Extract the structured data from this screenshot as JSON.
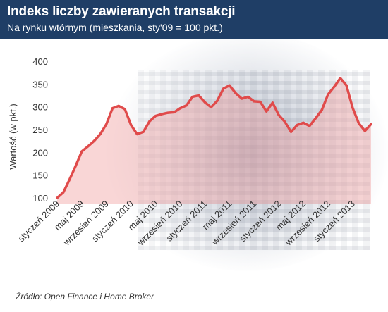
{
  "header": {
    "title": "Indeks liczby zawieranych transakcji",
    "subtitle": "Na rynku wtórnym (mieszkania, sty'09 = 100 pkt.)"
  },
  "source": "Źródło: Open Finance i Home Broker",
  "colors": {
    "header_bg": "#1f3e66",
    "line": "#e04b4b",
    "area": "#f2a3a3"
  },
  "chart_data": {
    "type": "area",
    "ylabel": "Wartość (w pkt.)",
    "ylim": [
      0,
      400
    ],
    "yticks": [
      400,
      350,
      300,
      250,
      200,
      150,
      100
    ],
    "grid": false,
    "x_tick_labels": [
      "styczeń 2009",
      "maj 2009",
      "wrzesień 2009",
      "styczeń 2010",
      "maj 2010",
      "wrzesień 2010",
      "styczeń 2011",
      "maj 2011",
      "wrzesień 2011",
      "styczeń 2012",
      "maj 2012",
      "wrzesień 2012",
      "styczeń 2013"
    ],
    "x_tick_every": 4,
    "series": [
      {
        "values": [
          100,
          112,
          140,
          170,
          202,
          213,
          225,
          240,
          262,
          297,
          302,
          295,
          260,
          240,
          245,
          268,
          280,
          284,
          287,
          288,
          297,
          303,
          322,
          325,
          310,
          299,
          313,
          340,
          347,
          330,
          318,
          322,
          312,
          311,
          290,
          309,
          282,
          267,
          245,
          260,
          265,
          258,
          275,
          293,
          327,
          344,
          363,
          347,
          298,
          264,
          247,
          262
        ]
      }
    ]
  }
}
